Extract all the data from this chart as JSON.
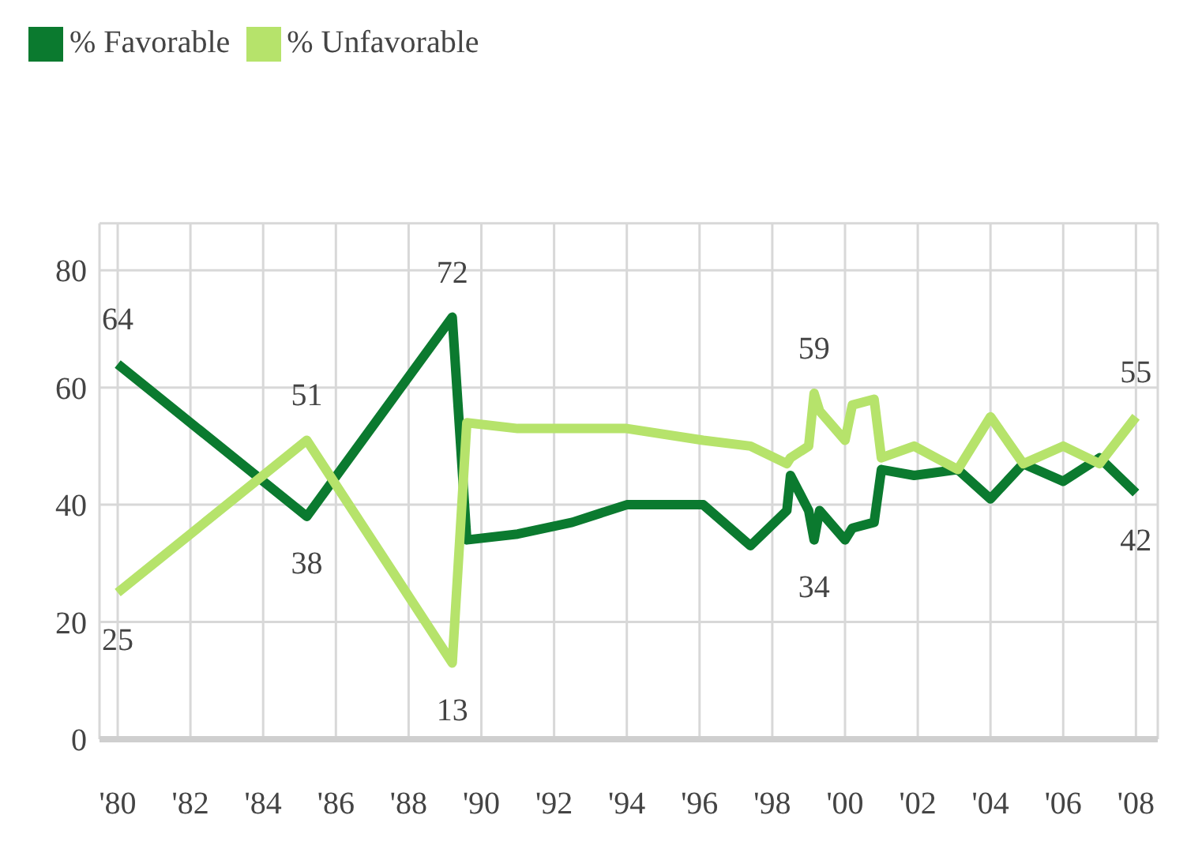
{
  "chart_data": {
    "type": "line",
    "x": [
      1980,
      1985.2,
      1989.2,
      1989.6,
      1991,
      1992.5,
      1994,
      1996.1,
      1997.4,
      1998.4,
      1998.5,
      1999,
      1999.15,
      1999.3,
      2000,
      2000.2,
      2000.8,
      2001,
      2001.9,
      2003.1,
      2004,
      2004.9,
      2006,
      2007,
      2008
    ],
    "series": [
      {
        "name": "% Favorable",
        "color": "#0b7a2f",
        "values": [
          64,
          38,
          72,
          34,
          35,
          37,
          40,
          40,
          33,
          39,
          45,
          39,
          34,
          39,
          34,
          36,
          37,
          46,
          45,
          46,
          41,
          47,
          44,
          48,
          42
        ]
      },
      {
        "name": "% Unfavorable",
        "color": "#b6e36b",
        "values": [
          25,
          51,
          13,
          54,
          53,
          53,
          53,
          51,
          50,
          47,
          48,
          50,
          59,
          56,
          51,
          57,
          58,
          48,
          50,
          46,
          55,
          47,
          50,
          47,
          55
        ]
      }
    ],
    "ylim": [
      0,
      88
    ],
    "yticks": [
      0,
      20,
      40,
      60,
      80
    ],
    "xlim": [
      1979.5,
      2008.6
    ],
    "xticks": [
      {
        "value": 1980,
        "label": "'80"
      },
      {
        "value": 1982,
        "label": "'82"
      },
      {
        "value": 1984,
        "label": "'84"
      },
      {
        "value": 1986,
        "label": "'86"
      },
      {
        "value": 1988,
        "label": "'88"
      },
      {
        "value": 1990,
        "label": "'90"
      },
      {
        "value": 1992,
        "label": "'92"
      },
      {
        "value": 1994,
        "label": "'94"
      },
      {
        "value": 1996,
        "label": "'96"
      },
      {
        "value": 1998,
        "label": "'98"
      },
      {
        "value": 2000,
        "label": "'00"
      },
      {
        "value": 2002,
        "label": "'02"
      },
      {
        "value": 2004,
        "label": "'04"
      },
      {
        "value": 2006,
        "label": "'06"
      },
      {
        "value": 2008,
        "label": "'08"
      }
    ],
    "grid": true,
    "legend": "top left",
    "marker": "none",
    "line_style": "solid",
    "annotations": [
      {
        "text": "64",
        "x": 1980,
        "y": 64
      },
      {
        "text": "25",
        "x": 1980,
        "y": 25
      },
      {
        "text": "51",
        "x": 1985.2,
        "y": 51
      },
      {
        "text": "38",
        "x": 1985.2,
        "y": 38
      },
      {
        "text": "72",
        "x": 1989.2,
        "y": 72
      },
      {
        "text": "13",
        "x": 1989.2,
        "y": 13
      },
      {
        "text": "59",
        "x": 1999.15,
        "y": 59
      },
      {
        "text": "34",
        "x": 1999.15,
        "y": 34
      },
      {
        "text": "55",
        "x": 2008,
        "y": 55
      },
      {
        "text": "42",
        "x": 2008,
        "y": 42
      }
    ]
  }
}
